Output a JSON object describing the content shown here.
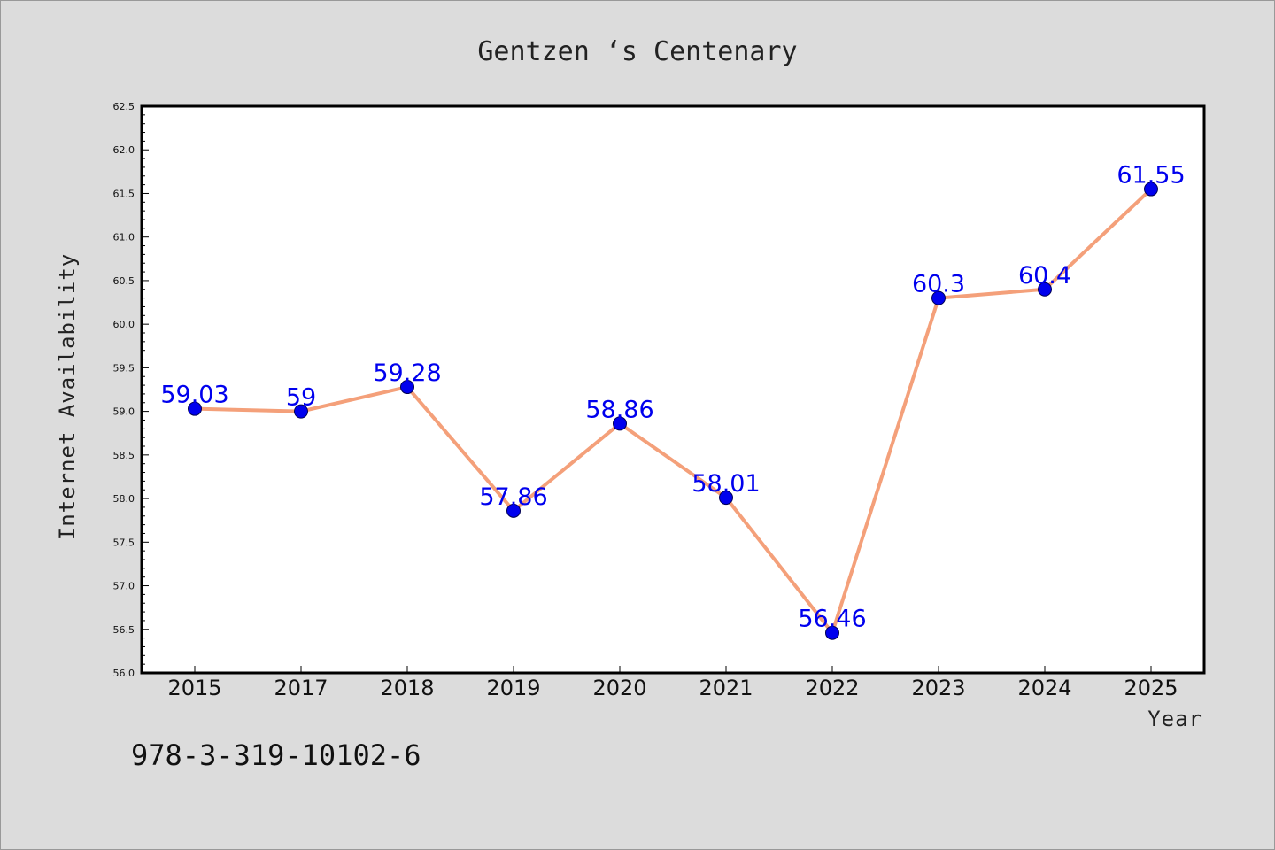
{
  "chart_data": {
    "type": "line",
    "title": "Gentzen ‘s Centenary",
    "xlabel": "Year",
    "ylabel": "Internet Availability",
    "categories": [
      "2015",
      "2017",
      "2018",
      "2019",
      "2020",
      "2021",
      "2022",
      "2023",
      "2024",
      "2025"
    ],
    "series": [
      {
        "values": [
          59.03,
          59,
          59.28,
          57.86,
          58.86,
          58.01,
          56.46,
          60.3,
          60.4,
          61.55
        ]
      }
    ],
    "data_labels": [
      "59.03",
      "59",
      "59.28",
      "57.86",
      "58.86",
      "58.01",
      "56.46",
      "60.3",
      "60.4",
      "61.55"
    ],
    "ylim": [
      56.0,
      62.5
    ],
    "yticks": [
      "56.0",
      "56.5",
      "57.0",
      "57.5",
      "58.0",
      "58.5",
      "59.0",
      "59.5",
      "60.0",
      "60.5",
      "61.0",
      "61.5",
      "62.0",
      "62.5"
    ],
    "grid": false,
    "legend": "none",
    "colors": {
      "line": "#f4a07a",
      "marker": "#0000ee",
      "data_label": "#0000ee",
      "background": "#dcdcdc",
      "plot_background": "#ffffff",
      "frame": "#000000"
    }
  },
  "footer": {
    "text": "978-3-319-10102-6"
  }
}
